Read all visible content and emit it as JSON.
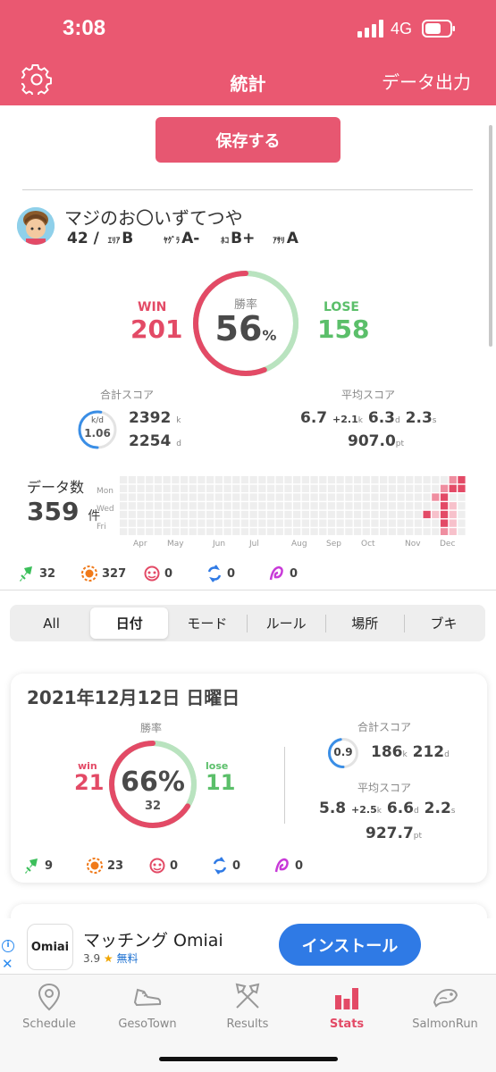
{
  "status_bar": {
    "time": "3:08",
    "network": "4G"
  },
  "header": {
    "title": "統計",
    "export_label": "データ出力"
  },
  "save_button": "保存する",
  "profile": {
    "name": "マジのお〇いずてつや",
    "level": "42",
    "ranks": [
      {
        "mode": "ｴﾘｱ",
        "rank": "B"
      },
      {
        "mode": "ﾔｸﾞﾗ",
        "rank": "A-"
      },
      {
        "mode": "ﾎｺ",
        "rank": "B+"
      },
      {
        "mode": "ｱｻﾘ",
        "rank": "A"
      }
    ]
  },
  "overall": {
    "win_label": "WIN",
    "win": "201",
    "lose_label": "LOSE",
    "lose": "158",
    "winrate_label": "勝率",
    "winrate": "56",
    "winrate_unit": "%",
    "winrate_fraction": 0.56,
    "total_score_label": "合計スコア",
    "kd_label": "k/d",
    "kd": "1.06",
    "kills": "2392",
    "kills_unit": "k",
    "deaths": "2254",
    "deaths_unit": "d",
    "avg_score_label": "平均スコア",
    "avg_kills": "6.7",
    "avg_assist": "+2.1",
    "avg_kill_unit": "k",
    "avg_deaths": "6.3",
    "avg_death_unit": "d",
    "avg_special": "2.3",
    "avg_special_unit": "s",
    "avg_points": "907.0",
    "avg_points_unit": "pt"
  },
  "data_count": {
    "label": "データ数",
    "value": "359",
    "unit": "件"
  },
  "heatmap": {
    "row_labels": [
      "Mon",
      "Wed",
      "Fri"
    ],
    "months": [
      "Apr",
      "May",
      "Jun",
      "Jul",
      "Aug",
      "Sep",
      "Oct",
      "Nov",
      "Dec"
    ],
    "colors": {
      "empty": "#eeeeee",
      "low": "#f7c1cb",
      "mid": "#ef8ea0",
      "high": "#e34a66"
    }
  },
  "mode_counts": [
    {
      "icon": "turf-war-icon",
      "value": "32",
      "color": "#3bbf5a"
    },
    {
      "icon": "ranked-icon",
      "value": "327",
      "color": "#f07a1a"
    },
    {
      "icon": "league-icon",
      "value": "0",
      "color": "#e34a66"
    },
    {
      "icon": "private-icon",
      "value": "0",
      "color": "#2f7ae5"
    },
    {
      "icon": "fest-icon",
      "value": "0",
      "color": "#c83ad8"
    }
  ],
  "segments": [
    "All",
    "日付",
    "モード",
    "ルール",
    "場所",
    "ブキ"
  ],
  "active_segment": 1,
  "day_card": {
    "date": "2021年12月12日 日曜日",
    "winrate_label": "勝率",
    "win_label": "win",
    "win": "21",
    "lose_label": "lose",
    "lose": "11",
    "winrate": "66%",
    "winrate_fraction": 0.66,
    "count": "32",
    "total_score_label": "合計スコア",
    "kd": "0.9",
    "kd_fraction": 0.47,
    "kills": "186",
    "kills_unit": "k",
    "deaths": "212",
    "deaths_unit": "d",
    "avg_score_label": "平均スコア",
    "avg_kills": "5.8",
    "avg_assist": "+2.5",
    "avg_kill_unit": "k",
    "avg_deaths": "6.6",
    "avg_death_unit": "d",
    "avg_special": "2.2",
    "avg_special_unit": "s",
    "avg_points": "927.7",
    "avg_points_unit": "pt",
    "mode_counts": [
      {
        "icon": "turf-war-icon",
        "value": "9",
        "color": "#3bbf5a"
      },
      {
        "icon": "ranked-icon",
        "value": "23",
        "color": "#f07a1a"
      },
      {
        "icon": "league-icon",
        "value": "0",
        "color": "#e34a66"
      },
      {
        "icon": "private-icon",
        "value": "0",
        "color": "#2f7ae5"
      },
      {
        "icon": "fest-icon",
        "value": "0",
        "color": "#c83ad8"
      }
    ]
  },
  "ad": {
    "logo_text": "Omiai",
    "title": "マッチング Omiai",
    "rating": "3.9",
    "price": "無料",
    "install_label": "インストール"
  },
  "tabs": [
    {
      "label": "Schedule",
      "icon": "location-pin-icon"
    },
    {
      "label": "GesoTown",
      "icon": "shoe-icon"
    },
    {
      "label": "Results",
      "icon": "crossed-weapons-icon"
    },
    {
      "label": "Stats",
      "icon": "bar-chart-icon"
    },
    {
      "label": "SalmonRun",
      "icon": "salmon-icon"
    }
  ],
  "active_tab": 3
}
